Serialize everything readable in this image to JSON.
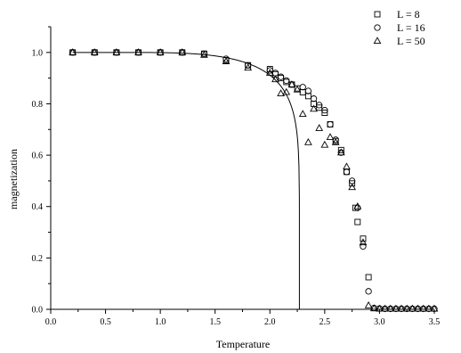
{
  "chart_data": {
    "type": "scatter",
    "title": "",
    "xlabel": "Temperature",
    "ylabel": "magnetization",
    "xlim": [
      0.0,
      3.5
    ],
    "ylim": [
      0.0,
      1.1
    ],
    "x_ticks": [
      "0.0",
      "0.5",
      "1.0",
      "1.5",
      "2.0",
      "2.5",
      "3.0",
      "3.5"
    ],
    "y_ticks": [
      "0.0",
      "0.2",
      "0.4",
      "0.6",
      "0.8",
      "1.0"
    ],
    "legend_position": "top-right",
    "series": [
      {
        "name": "L = 8",
        "marker": "square",
        "points": [
          [
            0.2,
            1.0
          ],
          [
            0.4,
            1.0
          ],
          [
            0.6,
            1.0
          ],
          [
            0.8,
            1.0
          ],
          [
            1.0,
            1.0
          ],
          [
            1.2,
            1.0
          ],
          [
            1.4,
            0.995
          ],
          [
            1.6,
            0.97
          ],
          [
            1.8,
            0.95
          ],
          [
            2.0,
            0.935
          ],
          [
            2.05,
            0.915
          ],
          [
            2.1,
            0.9
          ],
          [
            2.15,
            0.885
          ],
          [
            2.2,
            0.875
          ],
          [
            2.25,
            0.86
          ],
          [
            2.3,
            0.845
          ],
          [
            2.35,
            0.83
          ],
          [
            2.4,
            0.8
          ],
          [
            2.45,
            0.785
          ],
          [
            2.5,
            0.765
          ],
          [
            2.55,
            0.72
          ],
          [
            2.6,
            0.655
          ],
          [
            2.65,
            0.62
          ],
          [
            2.7,
            0.535
          ],
          [
            2.75,
            0.49
          ],
          [
            2.78,
            0.395
          ],
          [
            2.8,
            0.34
          ],
          [
            2.85,
            0.275
          ],
          [
            2.9,
            0.125
          ]
        ]
      },
      {
        "name": "L = 16",
        "marker": "circle",
        "points": [
          [
            0.2,
            1.0
          ],
          [
            0.4,
            1.0
          ],
          [
            0.6,
            1.0
          ],
          [
            0.8,
            1.0
          ],
          [
            1.0,
            1.0
          ],
          [
            1.2,
            1.0
          ],
          [
            1.4,
            0.995
          ],
          [
            1.6,
            0.975
          ],
          [
            1.8,
            0.95
          ],
          [
            2.0,
            0.93
          ],
          [
            2.05,
            0.92
          ],
          [
            2.1,
            0.905
          ],
          [
            2.15,
            0.89
          ],
          [
            2.2,
            0.875
          ],
          [
            2.3,
            0.865
          ],
          [
            2.35,
            0.85
          ],
          [
            2.4,
            0.82
          ],
          [
            2.45,
            0.795
          ],
          [
            2.5,
            0.775
          ],
          [
            2.55,
            0.72
          ],
          [
            2.6,
            0.66
          ],
          [
            2.65,
            0.61
          ],
          [
            2.7,
            0.535
          ],
          [
            2.75,
            0.5
          ],
          [
            2.8,
            0.395
          ],
          [
            2.85,
            0.245
          ],
          [
            2.9,
            0.07
          ],
          [
            2.95,
            0.005
          ],
          [
            3.0,
            0.003
          ],
          [
            3.05,
            0.002
          ],
          [
            3.1,
            0.002
          ],
          [
            3.15,
            0.002
          ],
          [
            3.2,
            0.002
          ],
          [
            3.25,
            0.002
          ],
          [
            3.3,
            0.002
          ],
          [
            3.35,
            0.002
          ],
          [
            3.4,
            0.002
          ],
          [
            3.45,
            0.002
          ],
          [
            3.5,
            0.002
          ]
        ]
      },
      {
        "name": "L = 50",
        "marker": "triangle",
        "points": [
          [
            0.2,
            1.0
          ],
          [
            0.4,
            1.0
          ],
          [
            0.6,
            1.0
          ],
          [
            0.8,
            1.0
          ],
          [
            1.0,
            1.0
          ],
          [
            1.2,
            1.0
          ],
          [
            1.4,
            0.99
          ],
          [
            1.6,
            0.965
          ],
          [
            1.8,
            0.94
          ],
          [
            2.0,
            0.92
          ],
          [
            2.05,
            0.895
          ],
          [
            2.1,
            0.84
          ],
          [
            2.15,
            0.845
          ],
          [
            2.2,
            0.875
          ],
          [
            2.25,
            0.855
          ],
          [
            2.3,
            0.76
          ],
          [
            2.35,
            0.65
          ],
          [
            2.4,
            0.78
          ],
          [
            2.45,
            0.705
          ],
          [
            2.5,
            0.64
          ],
          [
            2.55,
            0.67
          ],
          [
            2.6,
            0.65
          ],
          [
            2.65,
            0.61
          ],
          [
            2.7,
            0.555
          ],
          [
            2.75,
            0.475
          ],
          [
            2.8,
            0.4
          ],
          [
            2.85,
            0.26
          ],
          [
            2.9,
            0.015
          ],
          [
            2.95,
            0.003
          ],
          [
            3.0,
            0.002
          ],
          [
            3.05,
            0.002
          ],
          [
            3.1,
            0.002
          ],
          [
            3.15,
            0.002
          ],
          [
            3.2,
            0.002
          ],
          [
            3.25,
            0.002
          ],
          [
            3.3,
            0.002
          ],
          [
            3.35,
            0.002
          ],
          [
            3.4,
            0.002
          ],
          [
            3.45,
            0.002
          ],
          [
            3.5,
            0.002
          ]
        ]
      }
    ],
    "theory_curve": {
      "line": "solid",
      "tc": 2.269
    }
  }
}
